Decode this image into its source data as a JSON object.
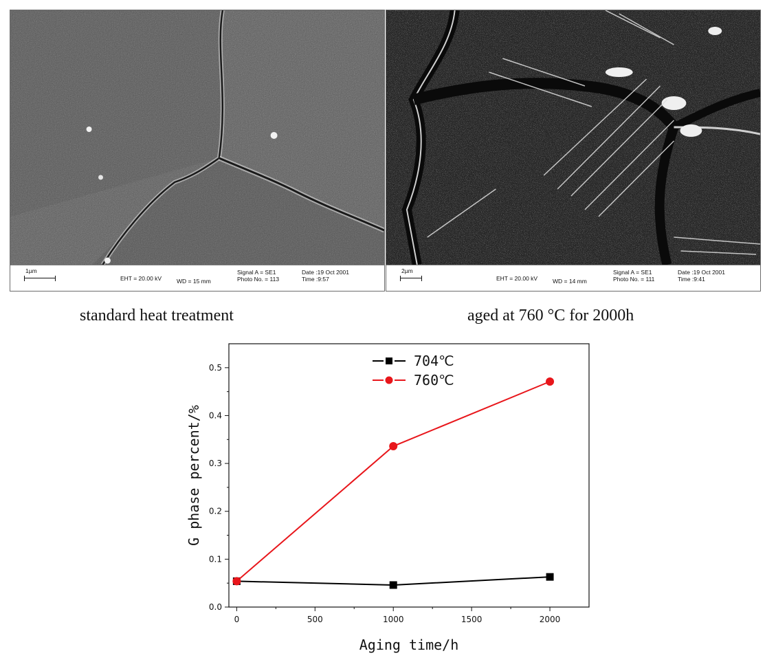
{
  "figure": {
    "panels": [
      {
        "scale_label": "1µm",
        "eht": "EHT = 20.00 kV",
        "wd": "WD =  15 mm",
        "signal": "Signal A = SE1",
        "photo": "Photo No. = 113",
        "date": "Date :19 Oct 2001",
        "time": "Time :9:57",
        "caption": "standard heat treatment"
      },
      {
        "scale_label": "2µm",
        "eht": "EHT = 20.00 kV",
        "wd": "WD =  14 mm",
        "signal": "Signal A = SE1",
        "photo": "Photo No. = 111",
        "date": "Date :19 Oct 2001",
        "time": "Time :9:41",
        "caption": "aged at 760 °C for 2000h"
      }
    ]
  },
  "chart_data": {
    "type": "line",
    "xlabel": "Aging time/h",
    "ylabel": "G phase percent/%",
    "xlim": [
      -50,
      2250
    ],
    "ylim": [
      0,
      0.55
    ],
    "xticks": [
      0,
      500,
      1000,
      1500,
      2000
    ],
    "yticks": [
      0.0,
      0.1,
      0.2,
      0.3,
      0.4,
      0.5
    ],
    "grid": false,
    "legend_position": "top-center",
    "series": [
      {
        "name": "704℃",
        "color": "#000000",
        "marker": "square",
        "x": [
          0,
          1000,
          2000
        ],
        "y": [
          0.054,
          0.046,
          0.063
        ]
      },
      {
        "name": "760℃",
        "color": "#e8161b",
        "marker": "circle",
        "x": [
          0,
          1000,
          2000
        ],
        "y": [
          0.054,
          0.336,
          0.471
        ]
      }
    ]
  }
}
